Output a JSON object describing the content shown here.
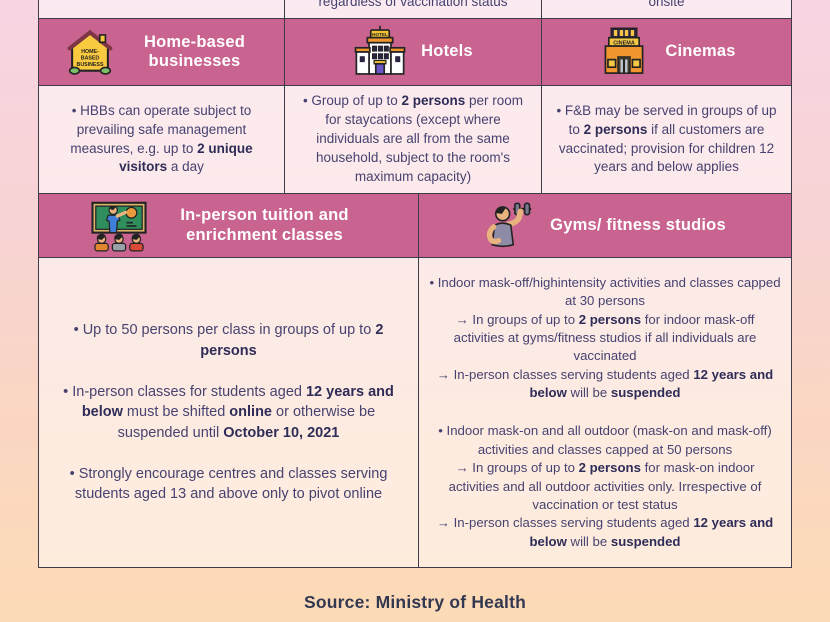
{
  "colors": {
    "header_pink": "#c9638f",
    "body_text": "#474370",
    "bold_text": "#2f2c58",
    "border": "#3f3b49",
    "background_top": "#f7d4e2",
    "background_bottom": "#fcdbb7",
    "header_text": "#ffffff"
  },
  "partial_row": {
    "cells": [
      "",
      "regardless of vaccination status",
      "onsite"
    ]
  },
  "category_row_1": [
    {
      "label": "Home-based businesses",
      "icon": "home-based-business-icon"
    },
    {
      "label": "Hotels",
      "icon": "hotel-icon"
    },
    {
      "label": "Cinemas",
      "icon": "cinema-icon"
    }
  ],
  "detail_row_1": [
    {
      "groups": [
        {
          "lines": [
            [
              {
                "t": "• HBBs can operate subject to prevailing safe management measures, e.g. up to "
              },
              {
                "t": "2 unique visitors",
                "b": true
              },
              {
                "t": " a day"
              }
            ]
          ]
        }
      ]
    },
    {
      "groups": [
        {
          "lines": [
            [
              {
                "t": "• Group of up to "
              },
              {
                "t": "2 persons",
                "b": true
              },
              {
                "t": " per room for staycations (except where individuals are all from the same household, subject to the room's maximum capacity)"
              }
            ]
          ]
        }
      ]
    },
    {
      "groups": [
        {
          "lines": [
            [
              {
                "t": "• F&B may be served in groups of up to "
              },
              {
                "t": "2 persons",
                "b": true
              },
              {
                "t": " if all customers are vaccinated; provision for children 12 years and below applies"
              }
            ]
          ]
        }
      ]
    }
  ],
  "category_row_2": [
    {
      "label": "In-person tuition and enrichment classes",
      "icon": "tuition-icon"
    },
    {
      "label": "Gyms/ fitness studios",
      "icon": "gym-icon"
    }
  ],
  "detail_row_2": [
    {
      "groups": [
        {
          "lines": [
            [
              {
                "t": "• Up to 50 persons per class in groups of up to "
              },
              {
                "t": "2 persons",
                "b": true
              }
            ]
          ]
        },
        {
          "lines": [
            [
              {
                "t": "• In-person classes for students aged "
              },
              {
                "t": "12 years and below",
                "b": true
              },
              {
                "t": " must be shifted "
              },
              {
                "t": "online",
                "b": true
              },
              {
                "t": " or otherwise be suspended until "
              },
              {
                "t": "October 10, 2021",
                "b": true
              }
            ]
          ]
        },
        {
          "lines": [
            [
              {
                "t": "• Strongly encourage centres and classes serving students aged 13 and above only to pivot online"
              }
            ]
          ]
        }
      ]
    },
    {
      "groups": [
        {
          "lines": [
            [
              {
                "t": "• Indoor mask-off/highintensity activities and classes capped at 30 persons"
              }
            ],
            [
              {
                "t": "→ In groups of up to "
              },
              {
                "t": "2 persons",
                "b": true
              },
              {
                "t": " for indoor mask-off activities at gyms/fitness studios if all individuals are vaccinated"
              }
            ],
            [
              {
                "t": "→ In-person classes serving students aged "
              },
              {
                "t": "12 years and below",
                "b": true
              },
              {
                "t": " will be "
              },
              {
                "t": "suspended",
                "b": true
              }
            ]
          ]
        },
        {
          "lines": [
            [
              {
                "t": "• Indoor mask-on and all outdoor (mask-on and mask-off) activities and classes capped at 50 persons"
              }
            ],
            [
              {
                "t": "→ In groups of up to "
              },
              {
                "t": "2 persons",
                "b": true
              },
              {
                "t": " for mask-on indoor activities and all outdoor activities only. Irrespective of vaccination or test status"
              }
            ],
            [
              {
                "t": "→ In-person classes serving students aged "
              },
              {
                "t": "12 years and below",
                "b": true
              },
              {
                "t": " will be "
              },
              {
                "t": "suspended",
                "b": true
              }
            ]
          ]
        }
      ]
    }
  ],
  "footer": {
    "source_label": "Source: Ministry of Health"
  }
}
